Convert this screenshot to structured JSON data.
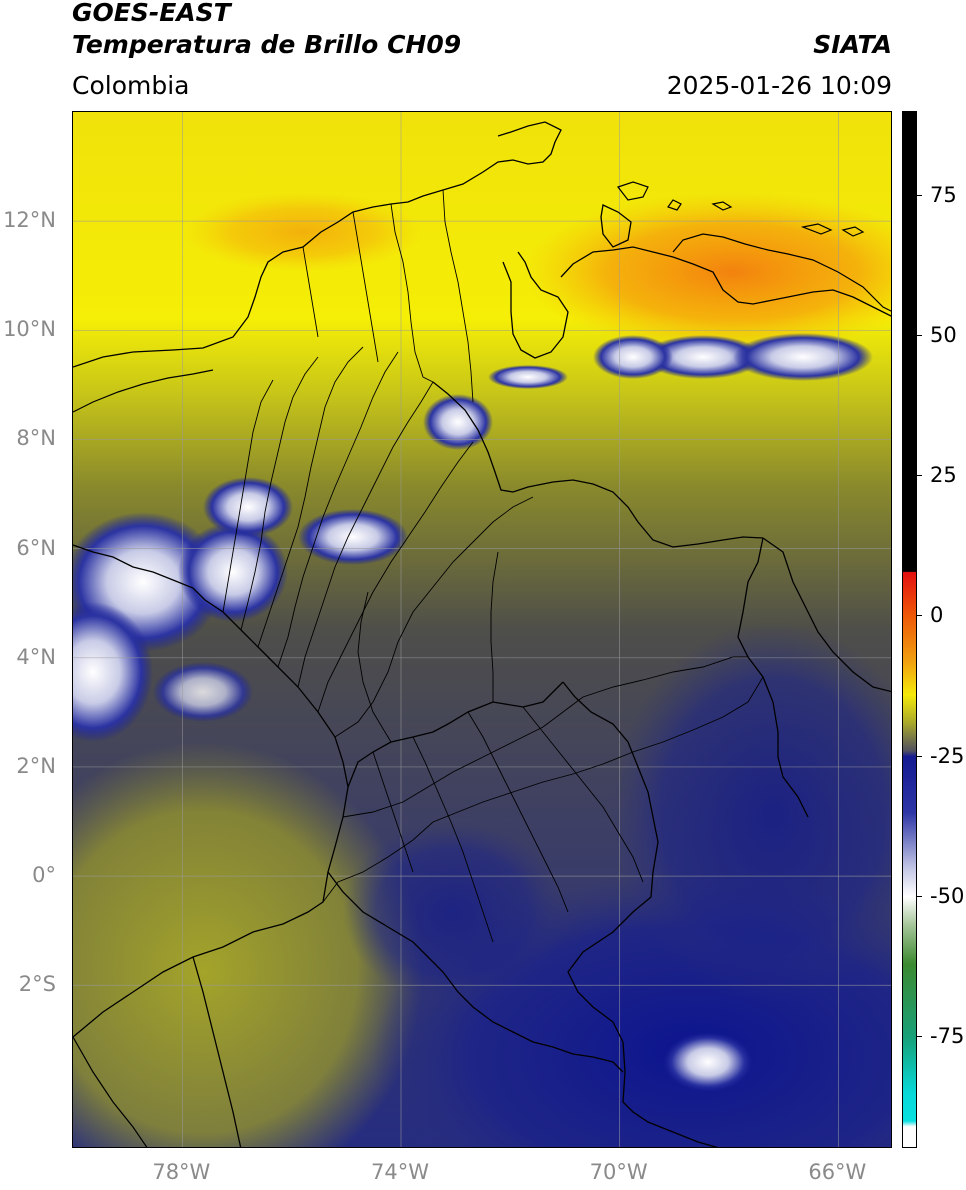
{
  "header": {
    "satellite": "GOES-EAST",
    "product": "Temperatura de Brillo CH09",
    "agency": "SIATA",
    "region": "Colombia",
    "datetime": "2025-01-26 10:09"
  },
  "map": {
    "lon_range": [
      -80,
      -65
    ],
    "lat_range": [
      -5,
      14
    ],
    "lat_labels": [
      {
        "lat": 12,
        "text": "12°N"
      },
      {
        "lat": 10,
        "text": "10°N"
      },
      {
        "lat": 8,
        "text": "8°N"
      },
      {
        "lat": 6,
        "text": "6°N"
      },
      {
        "lat": 4,
        "text": "4°N"
      },
      {
        "lat": 2,
        "text": "2°N"
      },
      {
        "lat": 0,
        "text": "0°"
      },
      {
        "lat": -2,
        "text": "2°S"
      }
    ],
    "lon_labels": [
      {
        "lon": -78,
        "text": "78°W"
      },
      {
        "lon": -74,
        "text": "74°W"
      },
      {
        "lon": -70,
        "text": "70°W"
      },
      {
        "lon": -66,
        "text": "66°W"
      }
    ],
    "grid": true,
    "colors": {
      "warm_north": "#f2e808",
      "warm_band": "#f59a0f",
      "mid": "#9a9a2a",
      "olive": "#5a5a40",
      "cold": "#2a2f7a",
      "deep_cold": "#0c1490",
      "cloud_top": "#e8eaf4",
      "border": "#000000",
      "grid": "#9a9a9a"
    }
  },
  "colorbar": {
    "range": [
      -95,
      90
    ],
    "ticks": [
      {
        "value": 75,
        "text": "75"
      },
      {
        "value": 50,
        "text": "50"
      },
      {
        "value": 25,
        "text": "25"
      },
      {
        "value": 0,
        "text": "0"
      },
      {
        "value": -25,
        "text": "-25"
      },
      {
        "value": -50,
        "text": "-50"
      },
      {
        "value": -75,
        "text": "-75"
      }
    ],
    "stops": [
      {
        "value": 90,
        "color": "#000000"
      },
      {
        "value": 8,
        "color": "#000000"
      },
      {
        "value": 7.9,
        "color": "#e31010"
      },
      {
        "value": 0,
        "color": "#ee5a08"
      },
      {
        "value": -8,
        "color": "#f0a010"
      },
      {
        "value": -14,
        "color": "#f5ea0a"
      },
      {
        "value": -19,
        "color": "#a8a82a"
      },
      {
        "value": -24,
        "color": "#505060"
      },
      {
        "value": -25,
        "color": "#141a90"
      },
      {
        "value": -35,
        "color": "#2e36a6"
      },
      {
        "value": -45,
        "color": "#c4c8e6"
      },
      {
        "value": -50,
        "color": "#ffffff"
      },
      {
        "value": -55,
        "color": "#a6c69a"
      },
      {
        "value": -62,
        "color": "#3c8a30"
      },
      {
        "value": -75,
        "color": "#18a078"
      },
      {
        "value": -85,
        "color": "#08d8d8"
      },
      {
        "value": -90,
        "color": "#08e0e0"
      },
      {
        "value": -91,
        "color": "#ffffff"
      },
      {
        "value": -95,
        "color": "#ffffff"
      }
    ]
  }
}
